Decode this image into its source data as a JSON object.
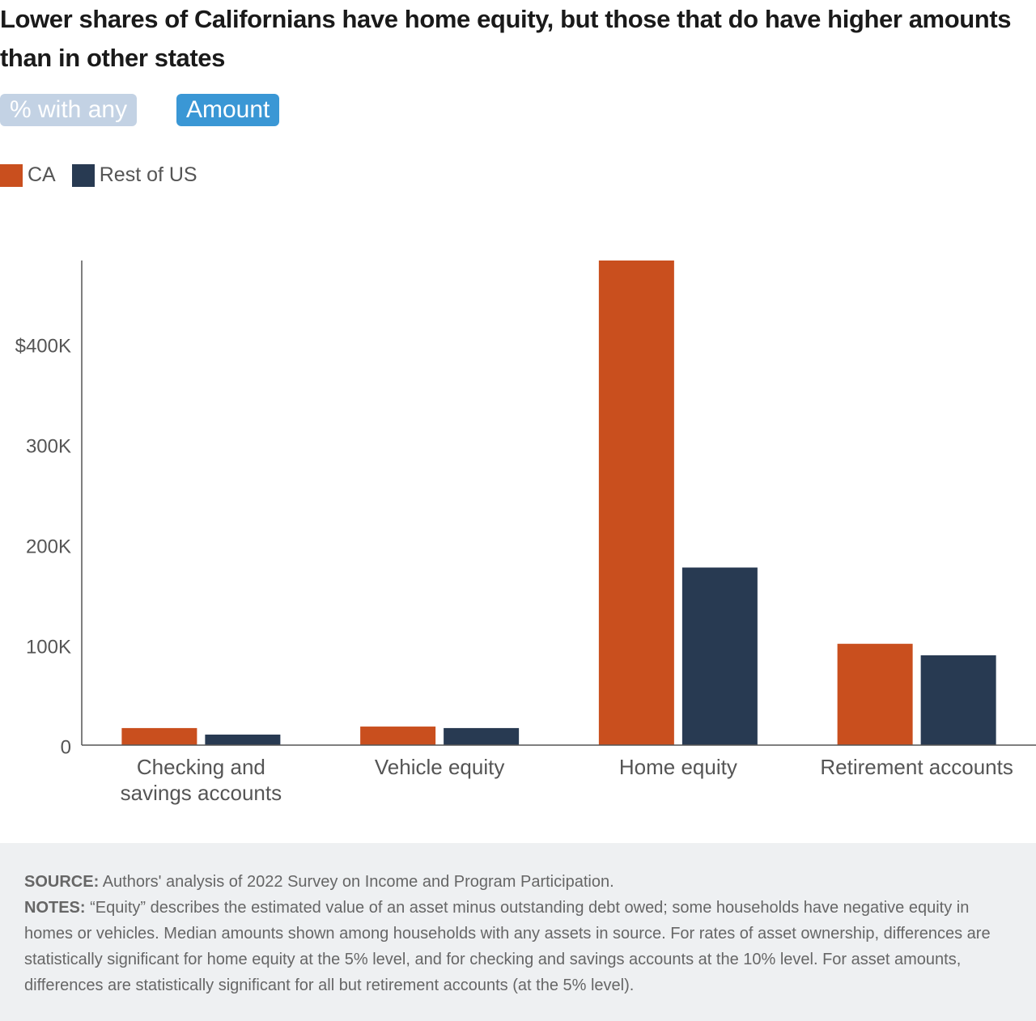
{
  "title": "Lower shares of Californians have home equity, but those that do have higher amounts than in other states",
  "buttons": [
    "% with any",
    "Amount"
  ],
  "chart_data": {
    "type": "bar",
    "categories": [
      "Checking and savings accounts",
      "Vehicle equity",
      "Home equity",
      "Retirement accounts"
    ],
    "series": [
      {
        "name": "CA",
        "color": "#c94f1e",
        "values": [
          17000,
          18500,
          483000,
          101000
        ]
      },
      {
        "name": "Rest of US",
        "color": "#283a52",
        "values": [
          10500,
          17000,
          177000,
          89500
        ]
      }
    ],
    "ylim": [
      0,
      483000
    ],
    "yticks": [
      0,
      {
        "value": 100000,
        "label": "100K"
      },
      {
        "value": 200000,
        "label": "200K"
      },
      {
        "value": 300000,
        "label": "300K"
      },
      {
        "value": 400000,
        "label": "$400K"
      }
    ],
    "grid": false
  },
  "footer": {
    "source_label": "SOURCE:",
    "source": "Authors' analysis of 2022 Survey on Income and Program Participation.",
    "notes_label": "NOTES:",
    "notes": "“Equity” describes the estimated value of an asset minus outstanding debt owed; some households have negative equity in homes or vehicles. Median amounts shown among households with any assets in source. For rates of asset ownership, differences are statistically significant for home equity at the 5% level, and for checking and savings accounts at the 10% level. For asset amounts, differences are statistically significant for all but retirement accounts (at the 5% level)."
  }
}
